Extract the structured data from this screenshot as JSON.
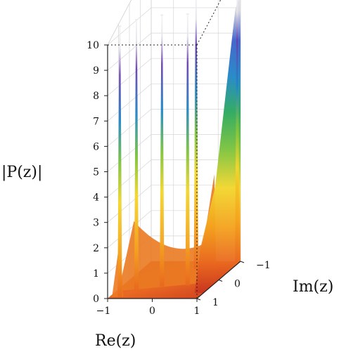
{
  "chart_data": {
    "type": "surface",
    "zlabel": "|P(z)|",
    "xlabel": "Re(z)",
    "ylabel": "Im(z)",
    "xlim": [
      -1,
      1
    ],
    "ylim": [
      -1,
      1
    ],
    "zlim": [
      0,
      10
    ],
    "x_ticks": [
      "−1",
      "0",
      "1"
    ],
    "y_ticks": [
      "−1",
      "0",
      "1"
    ],
    "z_ticks": [
      "0",
      "1",
      "2",
      "3",
      "4",
      "5",
      "6",
      "7",
      "8",
      "9",
      "10"
    ],
    "grid": true,
    "spikes": [
      {
        "re": -0.75,
        "im": 0.95,
        "height": 10
      },
      {
        "re": -0.55,
        "im": 0.6,
        "height": 10
      },
      {
        "re": -0.1,
        "im": 0.35,
        "height": 10
      },
      {
        "re": 0.45,
        "im": 0.3,
        "height": 10
      },
      {
        "re": 0.2,
        "im": -0.6,
        "height": 10
      },
      {
        "re": 0.95,
        "im": -0.95,
        "height": 10
      }
    ],
    "colormap": [
      "#c8341f",
      "#e9671f",
      "#f4a21d",
      "#f2d62b",
      "#79c23c",
      "#2aa85a",
      "#1f86c6",
      "#3b5fc9",
      "#6a3fae",
      "#d9d9e0"
    ]
  }
}
